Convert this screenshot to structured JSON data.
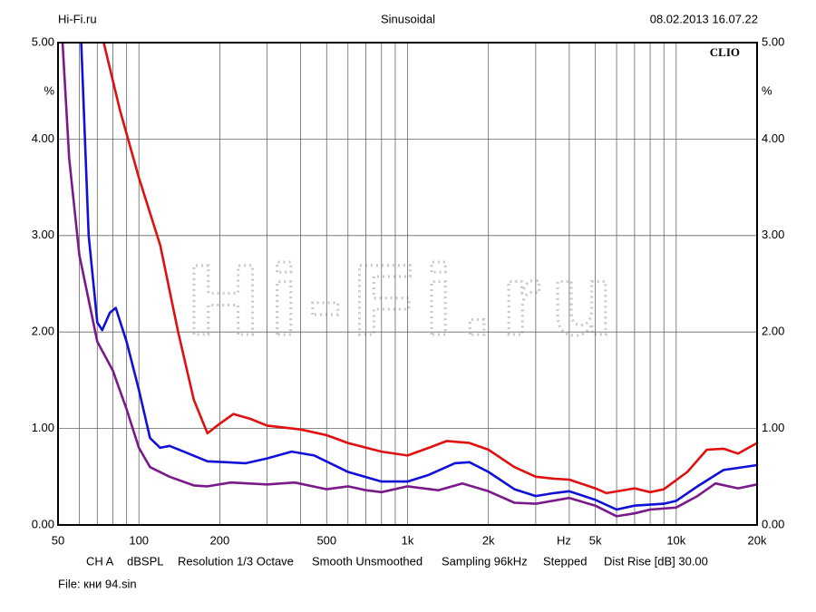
{
  "chart_data": {
    "type": "line",
    "header": {
      "left": "Hi-Fi.ru",
      "center": "Sinusoidal",
      "right": "08.02.2013 16.07.22"
    },
    "brand": "CLIO",
    "watermark": "Hi-Fi.ru",
    "x_unit": "Hz",
    "y_unit": "%",
    "xscale": "log",
    "xlim": [
      50,
      20000
    ],
    "ylim": [
      0,
      5
    ],
    "xticks": [
      50,
      100,
      200,
      500,
      {
        "value": 1000,
        "label": "1k"
      },
      {
        "value": 2000,
        "label": "2k"
      },
      {
        "value": 5000,
        "label": "5k"
      },
      {
        "value": 10000,
        "label": "10k"
      },
      {
        "value": 20000,
        "label": "20k"
      }
    ],
    "xgrid_minor": [
      60,
      70,
      80,
      90,
      300,
      400,
      600,
      700,
      800,
      900,
      3000,
      4000,
      6000,
      7000,
      8000,
      9000
    ],
    "yticks": [
      {
        "value": 0,
        "label": "0.00"
      },
      {
        "value": 1,
        "label": "1.00"
      },
      {
        "value": 2,
        "label": "2.00"
      },
      {
        "value": 3,
        "label": "3.00"
      },
      {
        "value": 4,
        "label": "4.00"
      },
      {
        "value": 5,
        "label": "5.00"
      }
    ],
    "grid": true,
    "series": [
      {
        "color": "#e01010",
        "x": [
          74,
          85,
          100,
          120,
          140,
          160,
          180,
          200,
          225,
          260,
          300,
          400,
          500,
          600,
          800,
          1000,
          1200,
          1400,
          1700,
          2000,
          2500,
          3000,
          3500,
          4000,
          5000,
          5500,
          7000,
          8000,
          9000,
          11000,
          13000,
          15000,
          17000,
          20000
        ],
        "values": [
          5.0,
          4.3,
          3.6,
          2.9,
          2.0,
          1.3,
          0.95,
          1.05,
          1.15,
          1.1,
          1.03,
          0.99,
          0.93,
          0.85,
          0.76,
          0.72,
          0.8,
          0.87,
          0.85,
          0.78,
          0.6,
          0.5,
          0.48,
          0.47,
          0.38,
          0.33,
          0.38,
          0.34,
          0.37,
          0.55,
          0.78,
          0.79,
          0.74,
          0.85
        ]
      },
      {
        "color": "#1010d8",
        "x": [
          61,
          65,
          70,
          73,
          78,
          82,
          90,
          100,
          110,
          120,
          130,
          150,
          180,
          250,
          300,
          370,
          450,
          600,
          800,
          1000,
          1200,
          1500,
          1700,
          2000,
          2500,
          3000,
          3500,
          4000,
          5000,
          6000,
          7000,
          9000,
          10000,
          12000,
          15000,
          20000
        ],
        "values": [
          5.0,
          3.0,
          2.1,
          2.02,
          2.2,
          2.25,
          1.9,
          1.4,
          0.9,
          0.8,
          0.82,
          0.75,
          0.66,
          0.64,
          0.69,
          0.76,
          0.72,
          0.55,
          0.45,
          0.45,
          0.52,
          0.64,
          0.65,
          0.55,
          0.37,
          0.3,
          0.33,
          0.35,
          0.26,
          0.16,
          0.2,
          0.22,
          0.25,
          0.4,
          0.57,
          0.62
        ]
      },
      {
        "color": "#7a1a8a",
        "x": [
          52,
          55,
          60,
          70,
          80,
          90,
          100,
          110,
          130,
          160,
          180,
          220,
          300,
          380,
          500,
          600,
          700,
          800,
          1000,
          1300,
          1600,
          2000,
          2500,
          3000,
          4000,
          5000,
          6000,
          7000,
          8000,
          10000,
          12000,
          14000,
          17000,
          20000
        ],
        "values": [
          5.0,
          3.8,
          2.8,
          1.9,
          1.6,
          1.2,
          0.8,
          0.6,
          0.5,
          0.41,
          0.4,
          0.44,
          0.42,
          0.44,
          0.37,
          0.4,
          0.36,
          0.34,
          0.4,
          0.36,
          0.43,
          0.35,
          0.23,
          0.22,
          0.28,
          0.2,
          0.09,
          0.12,
          0.16,
          0.18,
          0.3,
          0.43,
          0.38,
          0.42
        ]
      }
    ],
    "footer": [
      "CH A",
      "dBSPL",
      "Resolution 1/3 Octave",
      "Smooth Unsmoothed",
      "Sampling 96kHz",
      "Stepped",
      "Dist Rise [dB] 30.00"
    ],
    "file": "File: кни 94.sin"
  }
}
